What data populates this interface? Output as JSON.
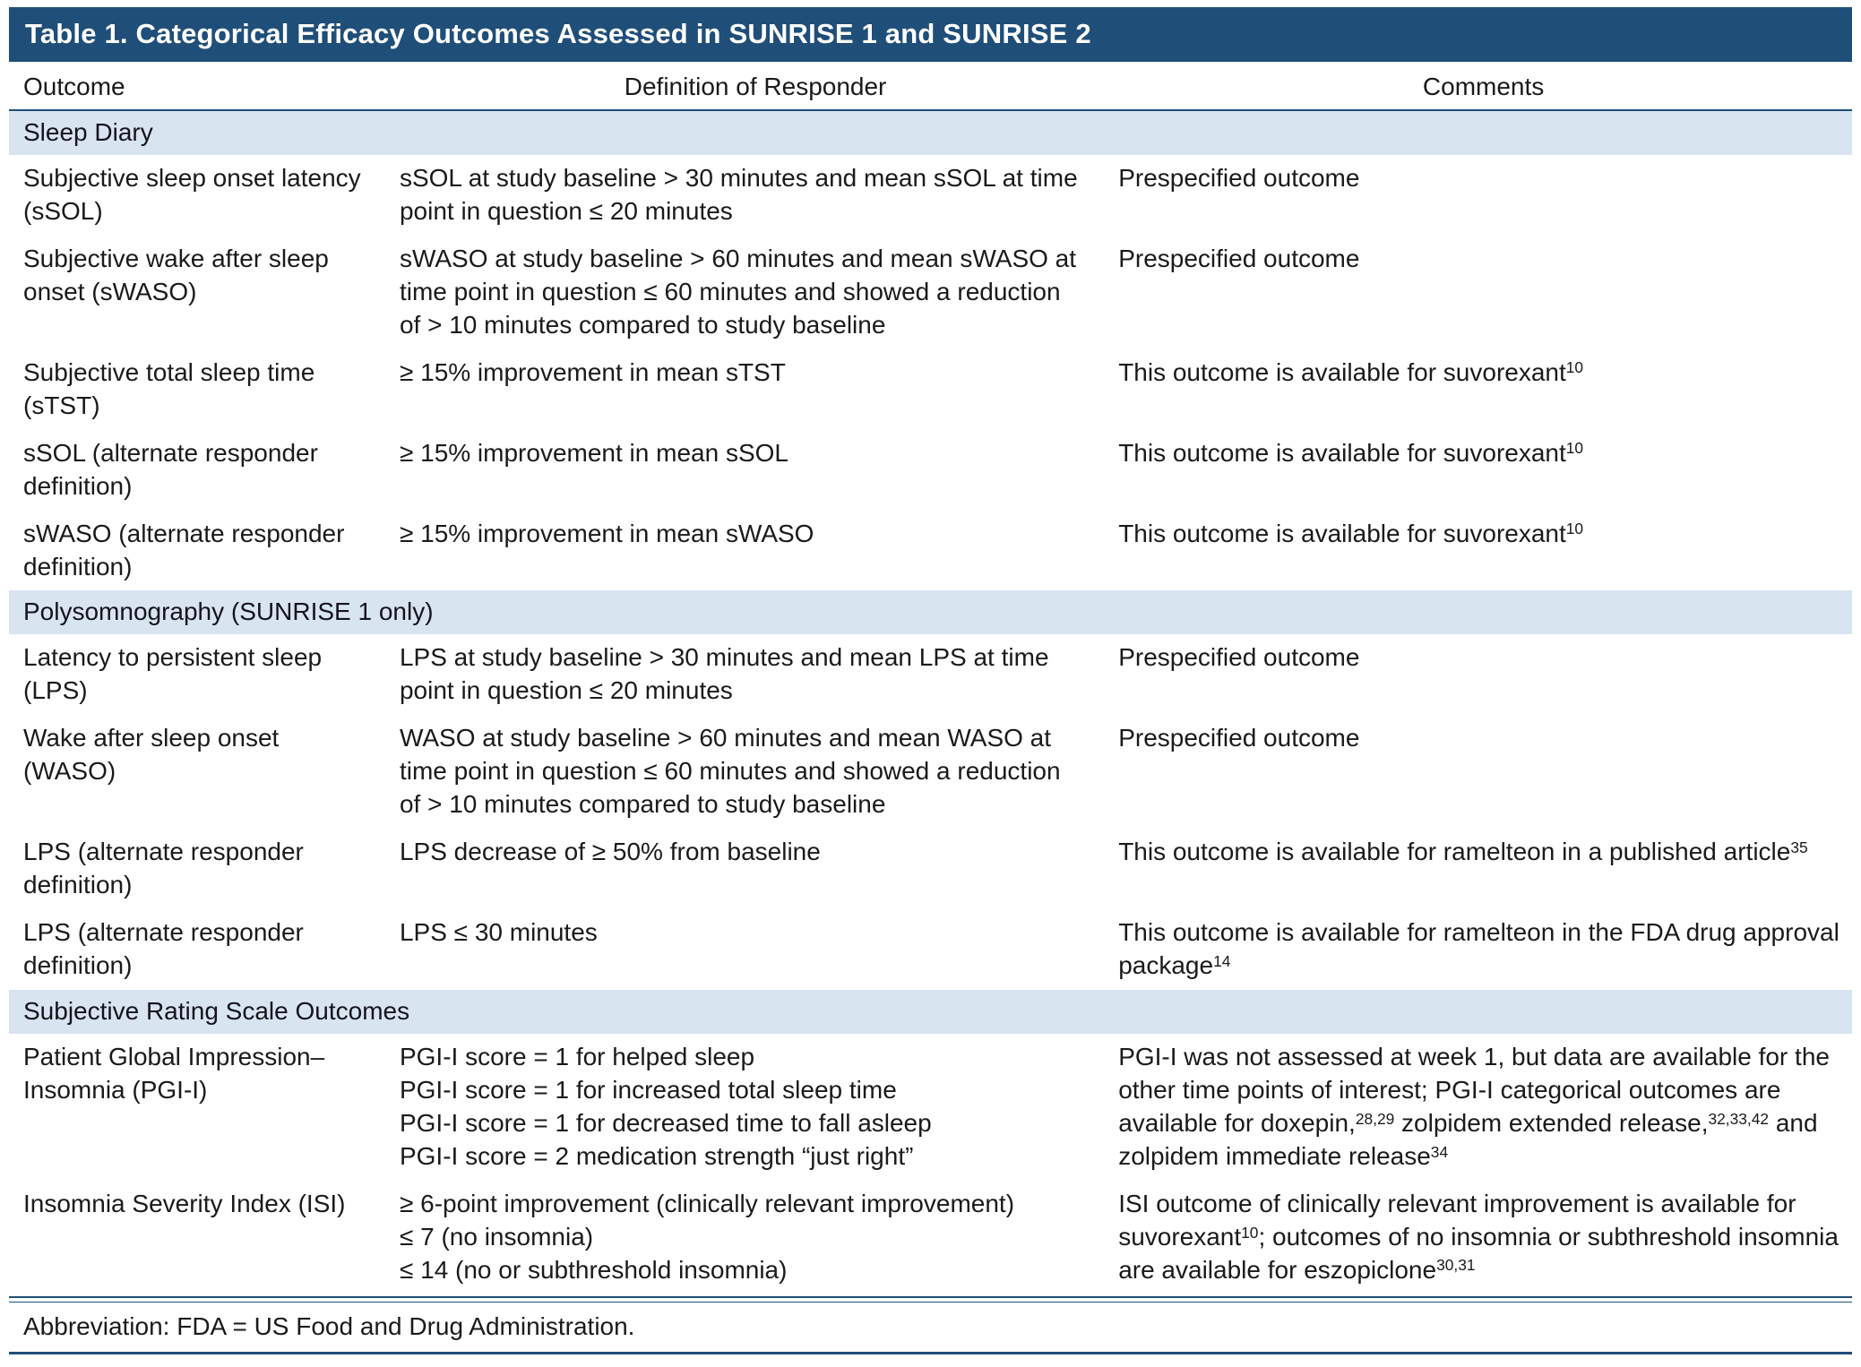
{
  "title": "Table 1. Categorical Efficacy Outcomes Assessed in SUNRISE 1 and SUNRISE 2",
  "columns": [
    "Outcome",
    "Definition of Responder",
    "Comments"
  ],
  "sections": [
    {
      "label": "Sleep Diary",
      "rows": [
        {
          "outcome": "Subjective sleep onset latency (sSOL)",
          "definition": [
            "sSOL at study baseline > 30 minutes and mean sSOL at time point in question ≤ 20 minutes"
          ],
          "comments": "Prespecified outcome"
        },
        {
          "outcome": "Subjective wake after sleep onset (sWASO)",
          "definition": [
            "sWASO at study baseline > 60 minutes and mean sWASO at time point in question ≤ 60 minutes and showed a reduction of > 10 minutes compared to study baseline"
          ],
          "comments": "Prespecified outcome"
        },
        {
          "outcome": "Subjective total sleep time (sTST)",
          "definition": [
            "≥ 15% improvement in mean sTST"
          ],
          "comments": "This outcome is available for suvorexant^10^"
        },
        {
          "outcome": "sSOL (alternate responder definition)",
          "definition": [
            "≥ 15% improvement in mean sSOL"
          ],
          "comments": "This outcome is available for suvorexant^10^"
        },
        {
          "outcome": "sWASO (alternate responder definition)",
          "definition": [
            "≥ 15% improvement in mean sWASO"
          ],
          "comments": "This outcome is available for suvorexant^10^"
        }
      ]
    },
    {
      "label": "Polysomnography (SUNRISE 1 only)",
      "rows": [
        {
          "outcome": "Latency to persistent sleep (LPS)",
          "definition": [
            "LPS at study baseline > 30 minutes and mean LPS at time point in question ≤ 20 minutes"
          ],
          "comments": "Prespecified outcome"
        },
        {
          "outcome": "Wake after sleep onset (WASO)",
          "definition": [
            "WASO at study baseline > 60 minutes and mean WASO at time point in question ≤ 60 minutes and showed a reduction of > 10 minutes compared to study baseline"
          ],
          "comments": "Prespecified outcome"
        },
        {
          "outcome": "LPS (alternate responder definition)",
          "definition": [
            "LPS decrease of ≥ 50% from baseline"
          ],
          "comments": "This outcome is available for ramelteon in a published article^35^"
        },
        {
          "outcome": "LPS (alternate responder definition)",
          "definition": [
            "LPS ≤ 30 minutes"
          ],
          "comments": "This outcome is available for ramelteon in the FDA drug approval package^14^"
        }
      ]
    },
    {
      "label": "Subjective Rating Scale Outcomes",
      "rows": [
        {
          "outcome": "Patient Global Impression–Insomnia (PGI-I)",
          "definition": [
            "PGI-I score = 1 for helped sleep",
            "PGI-I score = 1 for increased total sleep time",
            "PGI-I score = 1 for decreased time to fall asleep",
            "PGI-I score = 2 medication strength “just right”"
          ],
          "comments": "PGI-I was not assessed at week 1, but data are available for the other time points of interest; PGI-I categorical outcomes are available for doxepin,^28,29^ zolpidem extended release,^32,33,42^ and zolpidem immediate release^34^"
        },
        {
          "outcome": "Insomnia Severity Index (ISI)",
          "definition": [
            "≥ 6-point improvement (clinically relevant improvement)",
            "≤ 7 (no insomnia)",
            "≤ 14 (no or subthreshold insomnia)"
          ],
          "comments": "ISI outcome of clinically relevant improvement is available for suvorexant^10^; outcomes of no insomnia or subthreshold insomnia are available for eszopiclone^30,31^"
        }
      ]
    }
  ],
  "footnote": "Abbreviation: FDA = US Food and Drug Administration.",
  "colors": {
    "navy": "#1f4e79",
    "section_band": "#d9e4f1",
    "text": "#1a1a1a"
  }
}
